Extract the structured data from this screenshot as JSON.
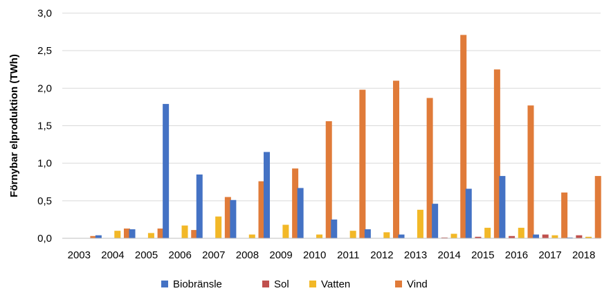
{
  "chart_data": {
    "type": "bar",
    "title": "",
    "xlabel": "",
    "ylabel": "Förnybar elproduktion (TWh)",
    "ylim": [
      0,
      3.0
    ],
    "yticks": [
      "0,0",
      "0,5",
      "1,0",
      "1,5",
      "2,0",
      "2,5",
      "3,0"
    ],
    "grid": true,
    "legend_position": "bottom",
    "categories": [
      "2003",
      "2004",
      "2005",
      "2006",
      "2007",
      "2008",
      "2009",
      "2010",
      "2011",
      "2012",
      "2013",
      "2014",
      "2015",
      "2016",
      "2017",
      "2018"
    ],
    "series": [
      {
        "name": "Biobränsle",
        "color": "#4472C4",
        "values": [
          0.0,
          0.04,
          0.12,
          1.79,
          0.85,
          0.51,
          1.15,
          0.67,
          0.25,
          0.12,
          0.05,
          0.46,
          0.66,
          0.83,
          0.05,
          0.01
        ]
      },
      {
        "name": "Sol",
        "color": "#C0504D",
        "values": [
          0.0,
          0.0,
          0.0,
          0.0,
          0.0,
          0.0,
          0.0,
          0.0,
          0.0,
          0.0,
          0.0,
          0.01,
          0.02,
          0.03,
          0.05,
          0.04
        ]
      },
      {
        "name": "Vatten",
        "color": "#F2B827",
        "values": [
          0.0,
          0.1,
          0.07,
          0.17,
          0.29,
          0.05,
          0.18,
          0.05,
          0.1,
          0.08,
          0.38,
          0.06,
          0.14,
          0.14,
          0.04,
          0.02
        ]
      },
      {
        "name": "Vind",
        "color": "#E07B39",
        "values": [
          0.03,
          0.13,
          0.13,
          0.11,
          0.55,
          0.76,
          0.93,
          1.56,
          1.98,
          2.1,
          1.87,
          2.71,
          2.25,
          1.77,
          0.61,
          0.83
        ]
      }
    ]
  }
}
